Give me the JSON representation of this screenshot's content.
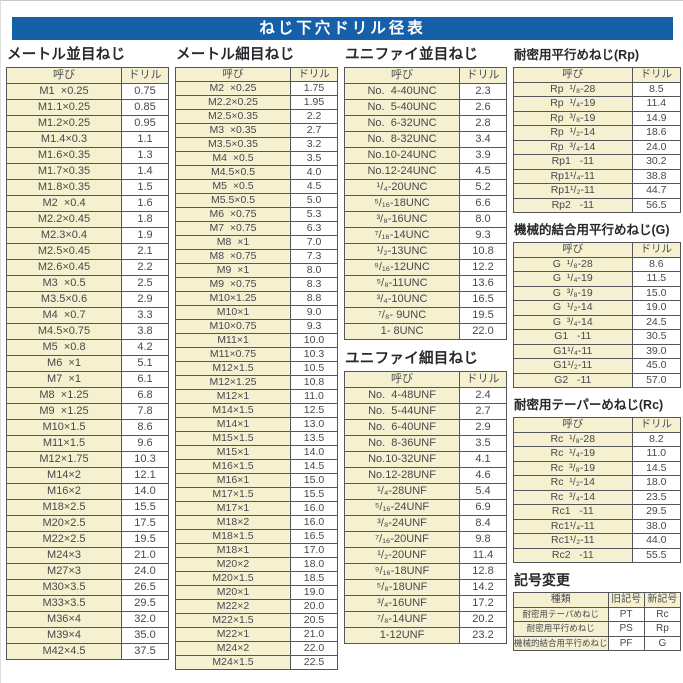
{
  "header": {
    "title": "ねじ下穴ドリル径表"
  },
  "colors": {
    "header_bg": "#1560a8",
    "cell_cream": "#f5f0d0",
    "border": "#55565a",
    "text": "#46484d"
  },
  "tables": [
    {
      "key": "metric_coarse",
      "title": "メートル並目ねじ",
      "headers": [
        "呼び",
        "ドリル"
      ],
      "rows": [
        [
          "M1  ×0.25",
          "0.75"
        ],
        [
          "M1.1×0.25",
          "0.85"
        ],
        [
          "M1.2×0.25",
          "0.95"
        ],
        [
          "M1.4×0.3",
          "1.1"
        ],
        [
          "M1.6×0.35",
          "1.3"
        ],
        [
          "M1.7×0.35",
          "1.4"
        ],
        [
          "M1.8×0.35",
          "1.5"
        ],
        [
          "M2  ×0.4",
          "1.6"
        ],
        [
          "M2.2×0.45",
          "1.8"
        ],
        [
          "M2.3×0.4",
          "1.9"
        ],
        [
          "M2.5×0.45",
          "2.1"
        ],
        [
          "M2.6×0.45",
          "2.2"
        ],
        [
          "M3  ×0.5",
          "2.5"
        ],
        [
          "M3.5×0.6",
          "2.9"
        ],
        [
          "M4  ×0.7",
          "3.3"
        ],
        [
          "M4.5×0.75",
          "3.8"
        ],
        [
          "M5  ×0.8",
          "4.2"
        ],
        [
          "M6  ×1",
          "5.1"
        ],
        [
          "M7  ×1",
          "6.1"
        ],
        [
          "M8  ×1.25",
          "6.8"
        ],
        [
          "M9  ×1.25",
          "7.8"
        ],
        [
          "M10×1.5",
          "8.6"
        ],
        [
          "M11×1.5",
          "9.6"
        ],
        [
          "M12×1.75",
          "10.3"
        ],
        [
          "M14×2",
          "12.1"
        ],
        [
          "M16×2",
          "14.0"
        ],
        [
          "M18×2.5",
          "15.5"
        ],
        [
          "M20×2.5",
          "17.5"
        ],
        [
          "M22×2.5",
          "19.5"
        ],
        [
          "M24×3",
          "21.0"
        ],
        [
          "M27×3",
          "24.0"
        ],
        [
          "M30×3.5",
          "26.5"
        ],
        [
          "M33×3.5",
          "29.5"
        ],
        [
          "M36×4",
          "32.0"
        ],
        [
          "M39×4",
          "35.0"
        ],
        [
          "M42×4.5",
          "37.5"
        ]
      ]
    },
    {
      "key": "metric_fine",
      "title": "メートル細目ねじ",
      "headers": [
        "呼び",
        "ドリル"
      ],
      "rows": [
        [
          "M2  ×0.25",
          "1.75"
        ],
        [
          "M2.2×0.25",
          "1.95"
        ],
        [
          "M2.5×0.35",
          "2.2"
        ],
        [
          "M3  ×0.35",
          "2.7"
        ],
        [
          "M3.5×0.35",
          "3.2"
        ],
        [
          "M4  ×0.5",
          "3.5"
        ],
        [
          "M4.5×0.5",
          "4.0"
        ],
        [
          "M5  ×0.5",
          "4.5"
        ],
        [
          "M5.5×0.5",
          "5.0"
        ],
        [
          "M6  ×0.75",
          "5.3"
        ],
        [
          "M7  ×0.75",
          "6.3"
        ],
        [
          "M8  ×1",
          "7.0"
        ],
        [
          "M8  ×0.75",
          "7.3"
        ],
        [
          "M9  ×1",
          "8.0"
        ],
        [
          "M9  ×0.75",
          "8.3"
        ],
        [
          "M10×1.25",
          "8.8"
        ],
        [
          "M10×1",
          "9.0"
        ],
        [
          "M10×0.75",
          "9.3"
        ],
        [
          "M11×1",
          "10.0"
        ],
        [
          "M11×0.75",
          "10.3"
        ],
        [
          "M12×1.5",
          "10.5"
        ],
        [
          "M12×1.25",
          "10.8"
        ],
        [
          "M12×1",
          "11.0"
        ],
        [
          "M14×1.5",
          "12.5"
        ],
        [
          "M14×1",
          "13.0"
        ],
        [
          "M15×1.5",
          "13.5"
        ],
        [
          "M15×1",
          "14.0"
        ],
        [
          "M16×1.5",
          "14.5"
        ],
        [
          "M16×1",
          "15.0"
        ],
        [
          "M17×1.5",
          "15.5"
        ],
        [
          "M17×1",
          "16.0"
        ],
        [
          "M18×2",
          "16.0"
        ],
        [
          "M18×1.5",
          "16.5"
        ],
        [
          "M18×1",
          "17.0"
        ],
        [
          "M20×2",
          "18.0"
        ],
        [
          "M20×1.5",
          "18.5"
        ],
        [
          "M20×1",
          "19.0"
        ],
        [
          "M22×2",
          "20.0"
        ],
        [
          "M22×1.5",
          "20.5"
        ],
        [
          "M22×1",
          "21.0"
        ],
        [
          "M24×2",
          "22.0"
        ],
        [
          "M24×1.5",
          "22.5"
        ]
      ]
    },
    {
      "key": "unified_coarse",
      "title": "ユニファイ並目ねじ",
      "headers": [
        "呼び",
        "ドリル"
      ],
      "rows": [
        [
          "No.  4-40UNC",
          "2.3"
        ],
        [
          "No.  5-40UNC",
          "2.6"
        ],
        [
          "No.  6-32UNC",
          "2.8"
        ],
        [
          "No.  8-32UNC",
          "3.4"
        ],
        [
          "No.10-24UNC",
          "3.9"
        ],
        [
          "No.12-24UNC",
          "4.5"
        ],
        [
          "¹/₄-20UNC",
          "5.2"
        ],
        [
          "⁵/₁₆-18UNC",
          "6.6"
        ],
        [
          "³/₈-16UNC",
          "8.0"
        ],
        [
          "⁷/₁₆-14UNC",
          "9.3"
        ],
        [
          "¹/₂-13UNC",
          "10.8"
        ],
        [
          "⁹/₁₆-12UNC",
          "12.2"
        ],
        [
          "⁵/₈-11UNC",
          "13.6"
        ],
        [
          "³/₄-10UNC",
          "16.5"
        ],
        [
          "⁷/₈- 9UNC",
          "19.5"
        ],
        [
          "1- 8UNC",
          "22.0"
        ]
      ]
    },
    {
      "key": "unified_fine",
      "title": "ユニファイ細目ねじ",
      "headers": [
        "呼び",
        "ドリル"
      ],
      "rows": [
        [
          "No.  4-48UNF",
          "2.4"
        ],
        [
          "No.  5-44UNF",
          "2.7"
        ],
        [
          "No.  6-40UNF",
          "2.9"
        ],
        [
          "No.  8-36UNF",
          "3.5"
        ],
        [
          "No.10-32UNF",
          "4.1"
        ],
        [
          "No.12-28UNF",
          "4.6"
        ],
        [
          "¹/₄-28UNF",
          "5.4"
        ],
        [
          "⁵/₁₆-24UNF",
          "6.9"
        ],
        [
          "³/₈-24UNF",
          "8.4"
        ],
        [
          "⁷/₁₆-20UNF",
          "9.8"
        ],
        [
          "¹/₂-20UNF",
          "11.4"
        ],
        [
          "⁹/₁₆-18UNF",
          "12.8"
        ],
        [
          "⁵/₈-18UNF",
          "14.2"
        ],
        [
          "³/₄-16UNF",
          "17.2"
        ],
        [
          "⁷/₈-14UNF",
          "20.2"
        ],
        [
          "1-12UNF",
          "23.2"
        ]
      ]
    },
    {
      "key": "rp_parallel",
      "title": "耐密用平行めねじ(Rp)",
      "headers": [
        "呼び",
        "ドリル"
      ],
      "rows": [
        [
          "Rp  ¹/₈-28",
          "8.5"
        ],
        [
          "Rp  ¹/₄-19",
          "11.4"
        ],
        [
          "Rp  ³/₈-19",
          "14.9"
        ],
        [
          "Rp  ¹/₂-14",
          "18.6"
        ],
        [
          "Rp  ³/₄-14",
          "24.0"
        ],
        [
          "Rp1   -11",
          "30.2"
        ],
        [
          "Rp1¹/₄-11",
          "38.8"
        ],
        [
          "Rp1¹/₂-11",
          "44.7"
        ],
        [
          "Rp2   -11",
          "56.5"
        ]
      ]
    },
    {
      "key": "g_parallel",
      "title": "機械的結合用平行めねじ(G)",
      "headers": [
        "呼び",
        "ドリル"
      ],
      "rows": [
        [
          "G  ¹/₈-28",
          "8.6"
        ],
        [
          "G  ¹/₄-19",
          "11.5"
        ],
        [
          "G  ³/₈-19",
          "15.0"
        ],
        [
          "G  ¹/₂-14",
          "19.0"
        ],
        [
          "G  ³/₄-14",
          "24.5"
        ],
        [
          "G1   -11",
          "30.5"
        ],
        [
          "G1¹/₄-11",
          "39.0"
        ],
        [
          "G1¹/₂-11",
          "45.0"
        ],
        [
          "G2   -11",
          "57.0"
        ]
      ]
    },
    {
      "key": "rc_taper",
      "title": "耐密用テーパーめねじ(Rc)",
      "headers": [
        "呼び",
        "ドリル"
      ],
      "rows": [
        [
          "Rc  ¹/₈-28",
          "8.2"
        ],
        [
          "Rc  ¹/₄-19",
          "11.0"
        ],
        [
          "Rc  ³/₈-19",
          "14.5"
        ],
        [
          "Rc  ¹/₂-14",
          "18.0"
        ],
        [
          "Rc  ³/₄-14",
          "23.5"
        ],
        [
          "Rc1   -11",
          "29.5"
        ],
        [
          "Rc1¹/₄-11",
          "38.0"
        ],
        [
          "Rc1¹/₂-11",
          "44.0"
        ],
        [
          "Rc2   -11",
          "55.5"
        ]
      ]
    },
    {
      "key": "symbol_change",
      "title": "記号変更",
      "headers": [
        "種類",
        "旧記号",
        "新記号"
      ],
      "rows": [
        [
          "耐密用テーパめねじ",
          "PT",
          "Rc"
        ],
        [
          "耐密用平行めねじ",
          "PS",
          "Rp"
        ],
        [
          "機械的結合用平行めねじ",
          "PF",
          "G"
        ]
      ]
    }
  ]
}
